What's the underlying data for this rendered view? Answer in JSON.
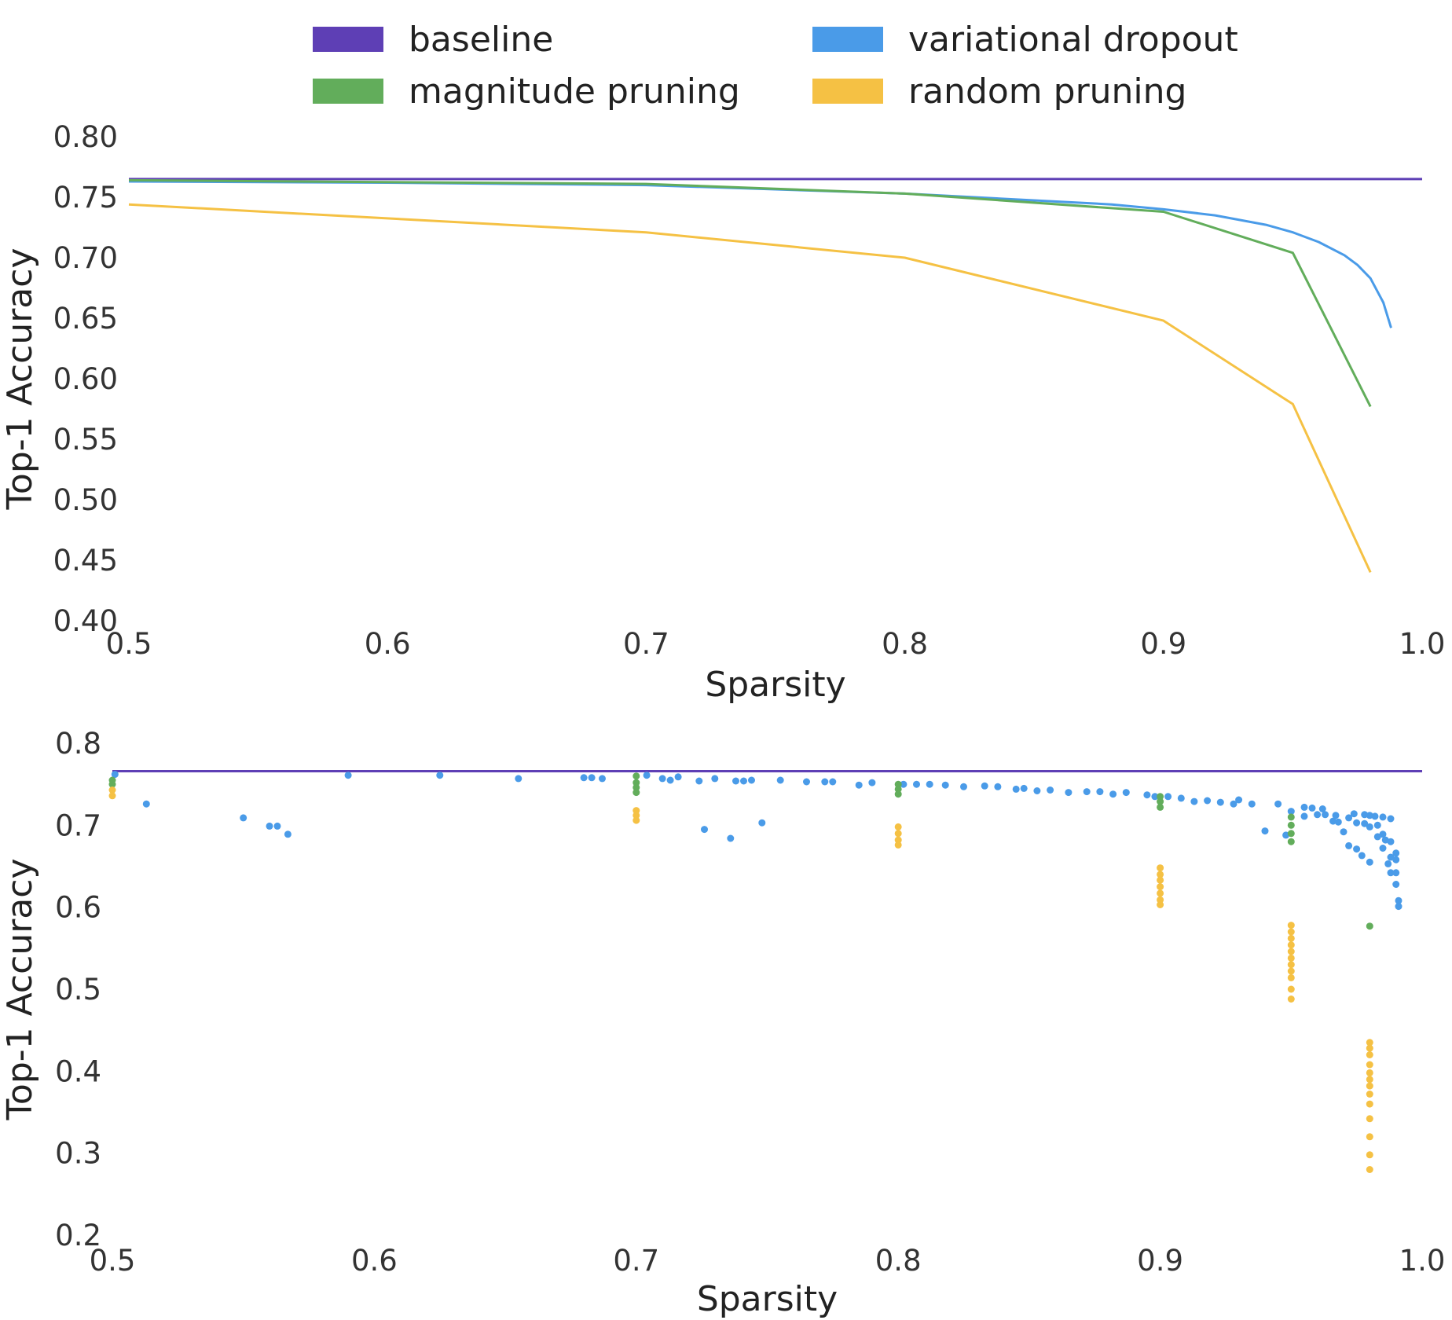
{
  "colors": {
    "baseline": "#5e3fb5",
    "variational_dropout": "#4a9be8",
    "magnitude_pruning": "#62ad5b",
    "random_pruning": "#f5c144"
  },
  "legend": {
    "placement": "top-center",
    "entries": [
      {
        "label": "baseline",
        "color_key": "baseline"
      },
      {
        "label": "variational dropout",
        "color_key": "variational_dropout"
      },
      {
        "label": "magnitude pruning",
        "color_key": "magnitude_pruning"
      },
      {
        "label": "random pruning",
        "color_key": "random_pruning"
      }
    ]
  },
  "chart_data": [
    {
      "type": "line",
      "xlabel": "Sparsity",
      "ylabel": "Top-1 Accuracy",
      "xlim": [
        0.5,
        1.0
      ],
      "ylim": [
        0.4,
        0.8
      ],
      "xticks": [
        "0.5",
        "0.6",
        "0.7",
        "0.8",
        "0.9",
        "1.0"
      ],
      "yticks": [
        "0.80",
        "0.75",
        "0.70",
        "0.65",
        "0.60",
        "0.55",
        "0.50",
        "0.45",
        "0.40"
      ],
      "grid": false,
      "baseline": 0.765,
      "series": [
        {
          "name": "variational dropout",
          "color_key": "variational_dropout",
          "x": [
            0.5,
            0.6,
            0.7,
            0.8,
            0.88,
            0.9,
            0.92,
            0.94,
            0.95,
            0.96,
            0.97,
            0.975,
            0.98,
            0.985,
            0.988
          ],
          "y": [
            0.763,
            0.762,
            0.76,
            0.753,
            0.744,
            0.74,
            0.735,
            0.727,
            0.721,
            0.713,
            0.702,
            0.694,
            0.683,
            0.663,
            0.642
          ]
        },
        {
          "name": "magnitude pruning",
          "color_key": "magnitude_pruning",
          "x": [
            0.5,
            0.7,
            0.8,
            0.9,
            0.95,
            0.98
          ],
          "y": [
            0.764,
            0.761,
            0.753,
            0.738,
            0.704,
            0.577
          ]
        },
        {
          "name": "random pruning",
          "color_key": "random_pruning",
          "x": [
            0.5,
            0.7,
            0.8,
            0.9,
            0.95,
            0.98
          ],
          "y": [
            0.744,
            0.721,
            0.7,
            0.648,
            0.579,
            0.44
          ]
        }
      ]
    },
    {
      "type": "scatter",
      "xlabel": "Sparsity",
      "ylabel": "Top-1 Accuracy",
      "xlim": [
        0.5,
        1.0
      ],
      "ylim": [
        0.2,
        0.8
      ],
      "xticks": [
        "0.5",
        "0.6",
        "0.7",
        "0.8",
        "0.9",
        "1.0"
      ],
      "yticks": [
        "0.8",
        "0.7",
        "0.6",
        "0.5",
        "0.4",
        "0.3",
        "0.2"
      ],
      "grid": false,
      "baseline": 0.766,
      "series": [
        {
          "name": "variational dropout",
          "color_key": "variational_dropout",
          "points": [
            [
              0.501,
              0.762
            ],
            [
              0.513,
              0.726
            ],
            [
              0.55,
              0.709
            ],
            [
              0.56,
              0.699
            ],
            [
              0.563,
              0.699
            ],
            [
              0.567,
              0.689
            ],
            [
              0.59,
              0.761
            ],
            [
              0.625,
              0.761
            ],
            [
              0.655,
              0.757
            ],
            [
              0.68,
              0.758
            ],
            [
              0.683,
              0.758
            ],
            [
              0.687,
              0.757
            ],
            [
              0.704,
              0.761
            ],
            [
              0.71,
              0.757
            ],
            [
              0.713,
              0.755
            ],
            [
              0.716,
              0.759
            ],
            [
              0.724,
              0.754
            ],
            [
              0.726,
              0.695
            ],
            [
              0.73,
              0.757
            ],
            [
              0.736,
              0.684
            ],
            [
              0.738,
              0.754
            ],
            [
              0.741,
              0.754
            ],
            [
              0.744,
              0.755
            ],
            [
              0.748,
              0.703
            ],
            [
              0.755,
              0.755
            ],
            [
              0.765,
              0.753
            ],
            [
              0.772,
              0.753
            ],
            [
              0.775,
              0.753
            ],
            [
              0.785,
              0.749
            ],
            [
              0.79,
              0.752
            ],
            [
              0.802,
              0.75
            ],
            [
              0.807,
              0.75
            ],
            [
              0.812,
              0.75
            ],
            [
              0.818,
              0.749
            ],
            [
              0.825,
              0.747
            ],
            [
              0.833,
              0.748
            ],
            [
              0.838,
              0.747
            ],
            [
              0.845,
              0.744
            ],
            [
              0.848,
              0.745
            ],
            [
              0.853,
              0.742
            ],
            [
              0.858,
              0.743
            ],
            [
              0.865,
              0.74
            ],
            [
              0.872,
              0.741
            ],
            [
              0.877,
              0.741
            ],
            [
              0.882,
              0.738
            ],
            [
              0.887,
              0.74
            ],
            [
              0.895,
              0.737
            ],
            [
              0.898,
              0.735
            ],
            [
              0.903,
              0.735
            ],
            [
              0.908,
              0.733
            ],
            [
              0.913,
              0.729
            ],
            [
              0.918,
              0.73
            ],
            [
              0.923,
              0.728
            ],
            [
              0.928,
              0.726
            ],
            [
              0.93,
              0.731
            ],
            [
              0.935,
              0.726
            ],
            [
              0.94,
              0.693
            ],
            [
              0.945,
              0.726
            ],
            [
              0.948,
              0.688
            ],
            [
              0.955,
              0.722
            ],
            [
              0.958,
              0.721
            ],
            [
              0.962,
              0.72
            ],
            [
              0.966,
              0.705
            ],
            [
              0.97,
              0.692
            ],
            [
              0.974,
              0.714
            ],
            [
              0.975,
              0.671
            ],
            [
              0.978,
              0.713
            ],
            [
              0.98,
              0.712
            ],
            [
              0.982,
              0.711
            ],
            [
              0.985,
              0.71
            ],
            [
              0.988,
              0.708
            ],
            [
              0.95,
              0.717
            ],
            [
              0.955,
              0.711
            ],
            [
              0.96,
              0.713
            ],
            [
              0.963,
              0.713
            ],
            [
              0.967,
              0.712
            ],
            [
              0.968,
              0.704
            ],
            [
              0.972,
              0.709
            ],
            [
              0.975,
              0.703
            ],
            [
              0.978,
              0.702
            ],
            [
              0.98,
              0.698
            ],
            [
              0.983,
              0.7
            ],
            [
              0.985,
              0.689
            ],
            [
              0.986,
              0.682
            ],
            [
              0.988,
              0.68
            ],
            [
              0.988,
              0.661
            ],
            [
              0.99,
              0.666
            ],
            [
              0.99,
              0.658
            ],
            [
              0.972,
              0.675
            ],
            [
              0.977,
              0.663
            ],
            [
              0.98,
              0.655
            ],
            [
              0.983,
              0.686
            ],
            [
              0.985,
              0.672
            ],
            [
              0.987,
              0.653
            ],
            [
              0.988,
              0.642
            ],
            [
              0.99,
              0.642
            ],
            [
              0.99,
              0.628
            ],
            [
              0.991,
              0.608
            ],
            [
              0.991,
              0.601
            ]
          ]
        },
        {
          "name": "magnitude pruning",
          "color_key": "magnitude_pruning",
          "points": [
            [
              0.5,
              0.755
            ],
            [
              0.5,
              0.75
            ],
            [
              0.7,
              0.76
            ],
            [
              0.7,
              0.752
            ],
            [
              0.7,
              0.746
            ],
            [
              0.7,
              0.74
            ],
            [
              0.8,
              0.75
            ],
            [
              0.8,
              0.744
            ],
            [
              0.8,
              0.738
            ],
            [
              0.9,
              0.735
            ],
            [
              0.9,
              0.729
            ],
            [
              0.9,
              0.722
            ],
            [
              0.95,
              0.71
            ],
            [
              0.95,
              0.7
            ],
            [
              0.95,
              0.69
            ],
            [
              0.95,
              0.68
            ],
            [
              0.98,
              0.577
            ]
          ]
        },
        {
          "name": "random pruning",
          "color_key": "random_pruning",
          "points": [
            [
              0.5,
              0.743
            ],
            [
              0.5,
              0.736
            ],
            [
              0.7,
              0.718
            ],
            [
              0.7,
              0.712
            ],
            [
              0.7,
              0.706
            ],
            [
              0.8,
              0.698
            ],
            [
              0.8,
              0.69
            ],
            [
              0.8,
              0.682
            ],
            [
              0.8,
              0.676
            ],
            [
              0.9,
              0.648
            ],
            [
              0.9,
              0.64
            ],
            [
              0.9,
              0.633
            ],
            [
              0.9,
              0.625
            ],
            [
              0.9,
              0.617
            ],
            [
              0.9,
              0.609
            ],
            [
              0.9,
              0.603
            ],
            [
              0.95,
              0.578
            ],
            [
              0.95,
              0.57
            ],
            [
              0.95,
              0.562
            ],
            [
              0.95,
              0.554
            ],
            [
              0.95,
              0.546
            ],
            [
              0.95,
              0.538
            ],
            [
              0.95,
              0.53
            ],
            [
              0.95,
              0.522
            ],
            [
              0.95,
              0.514
            ],
            [
              0.95,
              0.5
            ],
            [
              0.95,
              0.488
            ],
            [
              0.98,
              0.435
            ],
            [
              0.98,
              0.428
            ],
            [
              0.98,
              0.42
            ],
            [
              0.98,
              0.408
            ],
            [
              0.98,
              0.398
            ],
            [
              0.98,
              0.39
            ],
            [
              0.98,
              0.382
            ],
            [
              0.98,
              0.372
            ],
            [
              0.98,
              0.36
            ],
            [
              0.98,
              0.342
            ],
            [
              0.98,
              0.32
            ],
            [
              0.98,
              0.298
            ],
            [
              0.98,
              0.28
            ]
          ]
        }
      ]
    }
  ]
}
